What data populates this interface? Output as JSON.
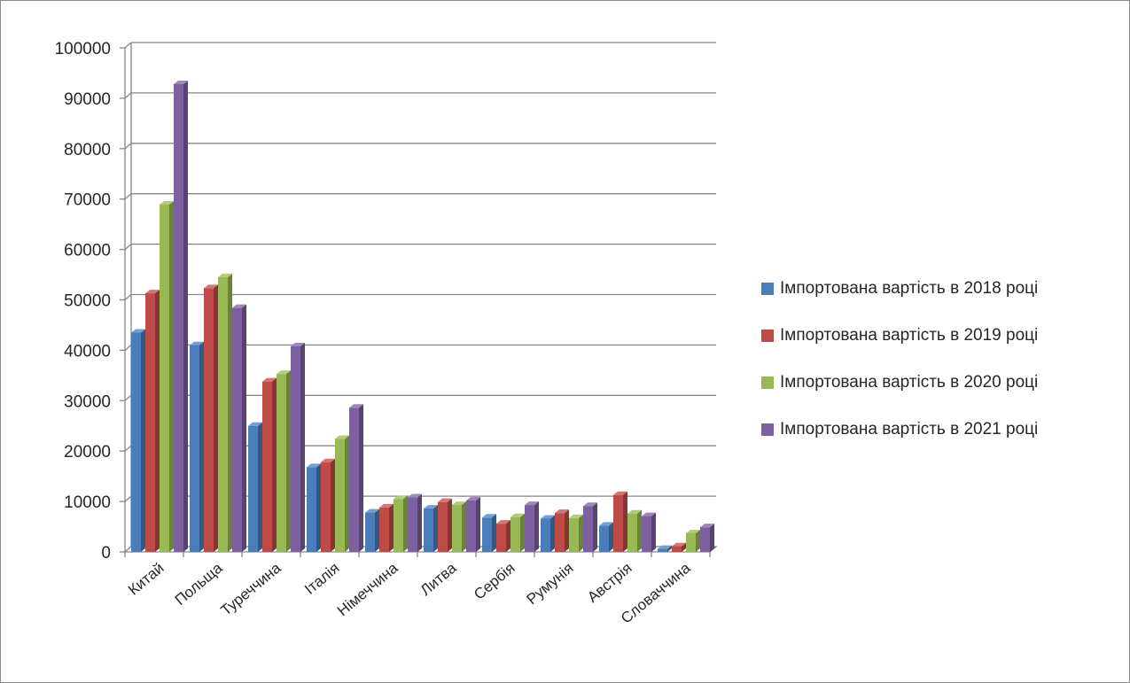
{
  "chart_data": {
    "type": "bar",
    "title": "",
    "xlabel": "",
    "ylabel": "",
    "ylim": [
      0,
      100000
    ],
    "yticks": [
      "0",
      "10000",
      "20000",
      "30000",
      "40000",
      "50000",
      "60000",
      "70000",
      "80000",
      "90000",
      "100000"
    ],
    "categories": [
      "Китай",
      "Польща",
      "Туреччина",
      "Італія",
      "Німеччина",
      "Литва",
      "Сербія",
      "Румунія",
      "Австрія",
      "Словаччина"
    ],
    "grid": true,
    "legend_position": "right",
    "series": [
      {
        "name": "Імпортована вартість в 2018 році",
        "color": "#4a7ebb",
        "values": [
          43500,
          41000,
          25000,
          16800,
          7800,
          8600,
          6800,
          6600,
          5200,
          600
        ]
      },
      {
        "name": "Імпортована вартість в 2019 році",
        "color": "#be4b48",
        "values": [
          51300,
          52300,
          33800,
          17800,
          8800,
          9900,
          5600,
          7700,
          11300,
          1100
        ]
      },
      {
        "name": "Імпортована вартість в 2020 році",
        "color": "#98b954",
        "values": [
          68900,
          54500,
          35300,
          22400,
          10500,
          9300,
          6900,
          6700,
          7600,
          3700
        ]
      },
      {
        "name": "Імпортована вартість в 2021 році",
        "color": "#7d60a0",
        "values": [
          92800,
          48400,
          40800,
          28600,
          10800,
          10200,
          9300,
          9100,
          7100,
          4900
        ]
      }
    ]
  }
}
